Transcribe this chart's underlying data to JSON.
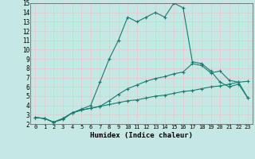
{
  "title": "",
  "xlabel": "Humidex (Indice chaleur)",
  "xlim": [
    -0.5,
    23.5
  ],
  "ylim": [
    2,
    15
  ],
  "xticks": [
    0,
    1,
    2,
    3,
    4,
    5,
    6,
    7,
    8,
    9,
    10,
    11,
    12,
    13,
    14,
    15,
    16,
    17,
    18,
    19,
    20,
    21,
    22,
    23
  ],
  "yticks": [
    2,
    3,
    4,
    5,
    6,
    7,
    8,
    9,
    10,
    11,
    12,
    13,
    14,
    15
  ],
  "bg_color": "#c5e8e5",
  "grid_color": "#e8c8c8",
  "line_color": "#1a7a6e",
  "line1_x": [
    0,
    1,
    2,
    3,
    4,
    5,
    6,
    7,
    8,
    9,
    10,
    11,
    12,
    13,
    14,
    15,
    16,
    17,
    18,
    19,
    20,
    21,
    22,
    23
  ],
  "line1_y": [
    2.7,
    2.6,
    2.2,
    2.5,
    3.2,
    3.5,
    3.7,
    3.9,
    4.1,
    4.3,
    4.5,
    4.6,
    4.8,
    5.0,
    5.1,
    5.3,
    5.5,
    5.6,
    5.8,
    6.0,
    6.1,
    6.3,
    6.5,
    6.6
  ],
  "line2_x": [
    0,
    1,
    2,
    3,
    4,
    5,
    6,
    7,
    8,
    9,
    10,
    11,
    12,
    13,
    14,
    15,
    16,
    17,
    18,
    19,
    20,
    21,
    22,
    23
  ],
  "line2_y": [
    2.7,
    2.6,
    2.2,
    2.6,
    3.2,
    3.6,
    4.0,
    6.5,
    9.0,
    11.0,
    13.5,
    13.0,
    13.5,
    14.0,
    13.5,
    15.0,
    14.5,
    8.7,
    8.5,
    7.7,
    6.5,
    6.0,
    6.3,
    4.8
  ],
  "line3_x": [
    0,
    1,
    2,
    3,
    4,
    5,
    6,
    7,
    8,
    9,
    10,
    11,
    12,
    13,
    14,
    15,
    16,
    17,
    18,
    19,
    20,
    21,
    22,
    23
  ],
  "line3_y": [
    2.7,
    2.6,
    2.2,
    2.6,
    3.2,
    3.5,
    3.7,
    3.9,
    4.5,
    5.2,
    5.8,
    6.2,
    6.6,
    6.9,
    7.1,
    7.4,
    7.6,
    8.5,
    8.3,
    7.5,
    7.7,
    6.7,
    6.5,
    4.8
  ],
  "marker": "+"
}
